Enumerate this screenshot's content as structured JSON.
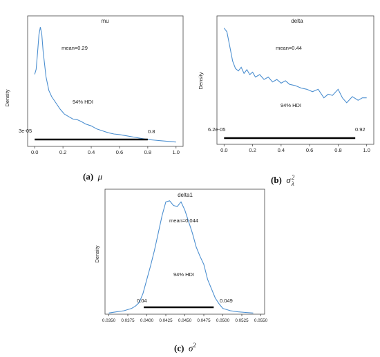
{
  "colors": {
    "curve": "#4c8fd0",
    "hdi_bar": "#000000",
    "frame": "#444444",
    "text": "#222222"
  },
  "figure": {
    "captions": [
      {
        "label": "(a)",
        "symbol": "μ",
        "sup": "",
        "sub": ""
      },
      {
        "label": "(b)",
        "symbol": "σ",
        "sup": "2",
        "sub": "λ"
      },
      {
        "label": "(c)",
        "symbol": "σ",
        "sup": "2",
        "sub": ""
      }
    ]
  },
  "chart_data": [
    {
      "type": "line",
      "title": "mu",
      "ylabel": "Density",
      "xlim": [
        -0.05,
        1.05
      ],
      "x_ticks": [
        "0.0",
        "0.2",
        "0.4",
        "0.6",
        "0.8",
        "1.0"
      ],
      "x_tick_values": [
        0.0,
        0.2,
        0.4,
        0.6,
        0.8,
        1.0
      ],
      "stat_text": "mean=0.29",
      "hdi_label": "94% HDI",
      "hdi_low_label": "3e-05",
      "hdi_high_label": "0.8",
      "hdi": [
        0.0,
        0.8
      ],
      "series": [
        {
          "x": [
            0.0,
            0.01,
            0.02,
            0.03,
            0.04,
            0.05,
            0.06,
            0.08,
            0.1,
            0.12,
            0.15,
            0.18,
            0.21,
            0.24,
            0.27,
            0.3,
            0.33,
            0.36,
            0.4,
            0.44,
            0.48,
            0.52,
            0.56,
            0.6,
            0.65,
            0.7,
            0.75,
            0.8,
            0.85,
            0.9,
            0.95,
            1.0
          ],
          "y": [
            0.58,
            0.62,
            0.75,
            0.9,
            0.96,
            0.9,
            0.76,
            0.56,
            0.45,
            0.4,
            0.35,
            0.3,
            0.26,
            0.24,
            0.22,
            0.215,
            0.2,
            0.18,
            0.165,
            0.14,
            0.125,
            0.11,
            0.1,
            0.095,
            0.085,
            0.075,
            0.065,
            0.055,
            0.05,
            0.045,
            0.04,
            0.035
          ]
        }
      ],
      "ylim": [
        0,
        1.05
      ]
    },
    {
      "type": "line",
      "title": "delta",
      "ylabel": "Density",
      "xlim": [
        -0.05,
        1.05
      ],
      "x_ticks": [
        "0.0",
        "0.2",
        "0.4",
        "0.6",
        "0.8",
        "1.0"
      ],
      "x_tick_values": [
        0.0,
        0.2,
        0.4,
        0.6,
        0.8,
        1.0
      ],
      "stat_text": "mean=0.44",
      "hdi_label": "94% HDI",
      "hdi_low_label": "6.2e-05",
      "hdi_high_label": "0.92",
      "hdi": [
        0.0,
        0.92
      ],
      "series": [
        {
          "x": [
            0.0,
            0.02,
            0.04,
            0.06,
            0.08,
            0.1,
            0.12,
            0.14,
            0.16,
            0.18,
            0.2,
            0.22,
            0.25,
            0.28,
            0.31,
            0.34,
            0.37,
            0.4,
            0.43,
            0.46,
            0.5,
            0.54,
            0.58,
            0.62,
            0.66,
            0.7,
            0.73,
            0.76,
            0.8,
            0.83,
            0.86,
            0.9,
            0.94,
            0.97,
            1.0
          ],
          "y": [
            0.95,
            0.92,
            0.8,
            0.68,
            0.62,
            0.6,
            0.63,
            0.58,
            0.61,
            0.57,
            0.59,
            0.55,
            0.57,
            0.53,
            0.55,
            0.51,
            0.53,
            0.5,
            0.52,
            0.49,
            0.48,
            0.46,
            0.45,
            0.43,
            0.45,
            0.38,
            0.41,
            0.4,
            0.45,
            0.38,
            0.34,
            0.39,
            0.36,
            0.38,
            0.38
          ]
        }
      ],
      "ylim": [
        0,
        1.05
      ]
    },
    {
      "type": "line",
      "title": "delta1",
      "ylabel": "Density",
      "xlim": [
        0.0345,
        0.0555
      ],
      "x_ticks": [
        "0.0350",
        "0.0375",
        "0.0400",
        "0.0425",
        "0.0450",
        "0.0475",
        "0.0500",
        "0.0525",
        "0.0550"
      ],
      "x_tick_values": [
        0.035,
        0.0375,
        0.04,
        0.0425,
        0.045,
        0.0475,
        0.05,
        0.0525,
        0.055
      ],
      "stat_text": "mean=0.044",
      "hdi_label": "94% HDI",
      "hdi_low_label": "0.04",
      "hdi_high_label": "0.049",
      "hdi": [
        0.0396,
        0.0488
      ],
      "series": [
        {
          "x": [
            0.035,
            0.036,
            0.037,
            0.038,
            0.0385,
            0.039,
            0.0395,
            0.04,
            0.0405,
            0.041,
            0.0415,
            0.042,
            0.0425,
            0.043,
            0.0435,
            0.044,
            0.0445,
            0.045,
            0.0455,
            0.046,
            0.0465,
            0.047,
            0.0475,
            0.048,
            0.0485,
            0.049,
            0.0495,
            0.05,
            0.051,
            0.052,
            0.053,
            0.054
          ],
          "y": [
            0.01,
            0.02,
            0.03,
            0.05,
            0.07,
            0.1,
            0.18,
            0.3,
            0.42,
            0.55,
            0.7,
            0.85,
            0.97,
            0.98,
            0.94,
            0.93,
            0.97,
            0.9,
            0.8,
            0.7,
            0.58,
            0.5,
            0.43,
            0.3,
            0.22,
            0.14,
            0.09,
            0.05,
            0.03,
            0.02,
            0.015,
            0.01
          ]
        }
      ],
      "ylim": [
        0,
        1.08
      ]
    }
  ]
}
